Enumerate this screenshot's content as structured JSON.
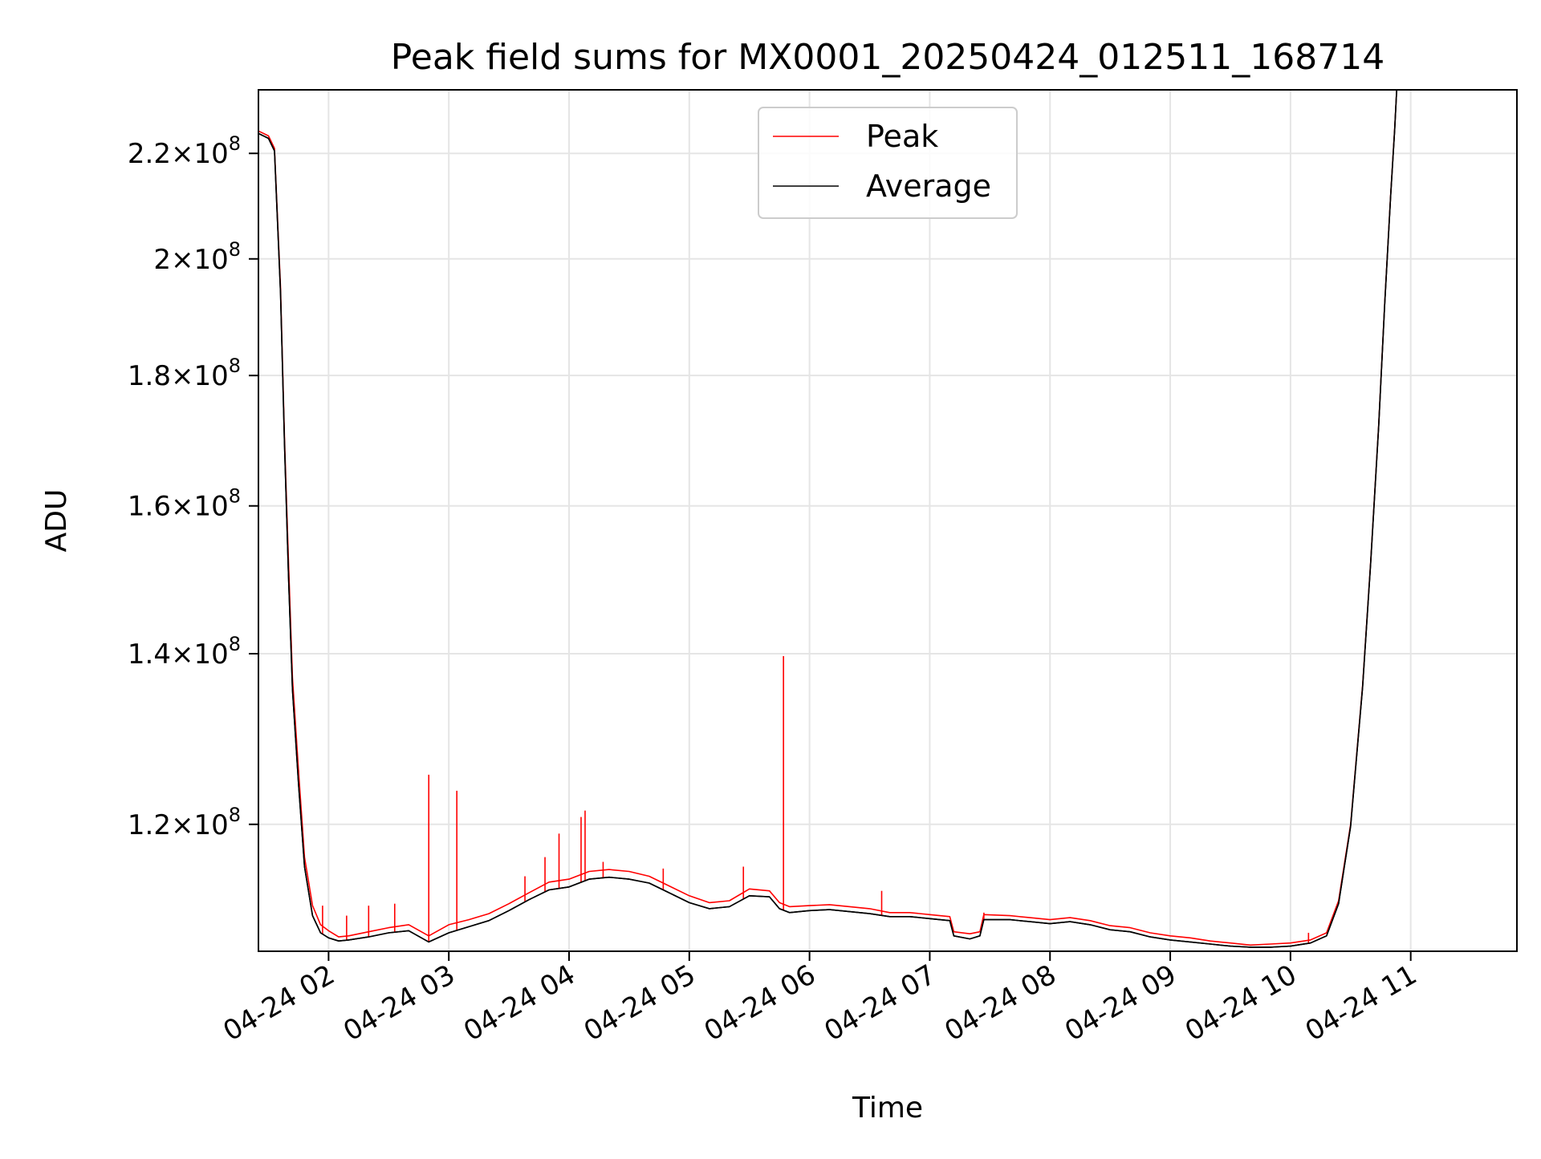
{
  "chart_data": {
    "type": "line",
    "title": "Peak field sums for MX0001_20250424_012511_168714",
    "xlabel": "Time",
    "ylabel": "ADU",
    "x_type": "datetime",
    "xlim": [
      "2025-04-24 01:25",
      "2025-04-24 11:53"
    ],
    "ylim": [
      107000000.0,
      233000000.0
    ],
    "y_scale": "log",
    "grid": true,
    "legend_position": "top-center",
    "x_ticks": [
      {
        "label": "04-24 02",
        "value": "2025-04-24 02:00"
      },
      {
        "label": "04-24 03",
        "value": "2025-04-24 03:00"
      },
      {
        "label": "04-24 04",
        "value": "2025-04-24 04:00"
      },
      {
        "label": "04-24 05",
        "value": "2025-04-24 05:00"
      },
      {
        "label": "04-24 06",
        "value": "2025-04-24 06:00"
      },
      {
        "label": "04-24 07",
        "value": "2025-04-24 07:00"
      },
      {
        "label": "04-24 08",
        "value": "2025-04-24 08:00"
      },
      {
        "label": "04-24 09",
        "value": "2025-04-24 09:00"
      },
      {
        "label": "04-24 10",
        "value": "2025-04-24 10:00"
      },
      {
        "label": "04-24 11",
        "value": "2025-04-24 11:00"
      }
    ],
    "y_ticks": [
      {
        "mantissa": "1.2",
        "exp": "8",
        "value": 120000000.0
      },
      {
        "mantissa": "1.4",
        "exp": "8",
        "value": 140000000.0
      },
      {
        "mantissa": "1.6",
        "exp": "8",
        "value": 160000000.0
      },
      {
        "mantissa": "1.8",
        "exp": "8",
        "value": 180000000.0
      },
      {
        "mantissa": "2",
        "exp": "8",
        "value": 200000000.0
      },
      {
        "mantissa": "2.2",
        "exp": "8",
        "value": 220000000.0
      }
    ],
    "series": [
      {
        "name": "Peak",
        "color": "#ff0000",
        "points": [
          [
            "2025-04-24 01:25",
            224500000.0
          ],
          [
            "2025-04-24 01:30",
            223500000.0
          ],
          [
            "2025-04-24 01:33",
            221000000.0
          ],
          [
            "2025-04-24 01:36",
            195000000.0
          ],
          [
            "2025-04-24 01:38",
            170000000.0
          ],
          [
            "2025-04-24 01:40",
            152000000.0
          ],
          [
            "2025-04-24 01:42",
            137000000.0
          ],
          [
            "2025-04-24 01:45",
            126000000.0
          ],
          [
            "2025-04-24 01:48",
            116500000.0
          ],
          [
            "2025-04-24 01:52",
            111500000.0
          ],
          [
            "2025-04-24 01:56",
            109600000.0
          ],
          [
            "2025-04-24 02:00",
            109000000.0
          ],
          [
            "2025-04-24 02:05",
            108400000.0
          ],
          [
            "2025-04-24 02:10",
            108500000.0
          ],
          [
            "2025-04-24 02:20",
            108900000.0
          ],
          [
            "2025-04-24 02:30",
            109300000.0
          ],
          [
            "2025-04-24 02:40",
            109600000.0
          ],
          [
            "2025-04-24 02:50",
            108500000.0
          ],
          [
            "2025-04-24 03:00",
            109600000.0
          ],
          [
            "2025-04-24 03:10",
            110100000.0
          ],
          [
            "2025-04-24 03:20",
            110700000.0
          ],
          [
            "2025-04-24 03:30",
            111700000.0
          ],
          [
            "2025-04-24 03:40",
            112800000.0
          ],
          [
            "2025-04-24 03:50",
            113900000.0
          ],
          [
            "2025-04-24 04:00",
            114200000.0
          ],
          [
            "2025-04-24 04:10",
            115000000.0
          ],
          [
            "2025-04-24 04:20",
            115200000.0
          ],
          [
            "2025-04-24 04:30",
            115000000.0
          ],
          [
            "2025-04-24 04:40",
            114500000.0
          ],
          [
            "2025-04-24 04:50",
            113500000.0
          ],
          [
            "2025-04-24 05:00",
            112500000.0
          ],
          [
            "2025-04-24 05:10",
            111800000.0
          ],
          [
            "2025-04-24 05:20",
            112000000.0
          ],
          [
            "2025-04-24 05:30",
            113200000.0
          ],
          [
            "2025-04-24 05:40",
            113000000.0
          ],
          [
            "2025-04-24 05:45",
            111800000.0
          ],
          [
            "2025-04-24 05:50",
            111400000.0
          ],
          [
            "2025-04-24 06:00",
            111500000.0
          ],
          [
            "2025-04-24 06:10",
            111600000.0
          ],
          [
            "2025-04-24 06:20",
            111400000.0
          ],
          [
            "2025-04-24 06:30",
            111200000.0
          ],
          [
            "2025-04-24 06:40",
            110800000.0
          ],
          [
            "2025-04-24 06:50",
            110800000.0
          ],
          [
            "2025-04-24 07:00",
            110600000.0
          ],
          [
            "2025-04-24 07:10",
            110400000.0
          ],
          [
            "2025-04-24 07:12",
            108900000.0
          ],
          [
            "2025-04-24 07:20",
            108700000.0
          ],
          [
            "2025-04-24 07:25",
            108900000.0
          ],
          [
            "2025-04-24 07:27",
            110600000.0
          ],
          [
            "2025-04-24 07:40",
            110500000.0
          ],
          [
            "2025-04-24 07:50",
            110300000.0
          ],
          [
            "2025-04-24 08:00",
            110100000.0
          ],
          [
            "2025-04-24 08:10",
            110300000.0
          ],
          [
            "2025-04-24 08:20",
            110000000.0
          ],
          [
            "2025-04-24 08:30",
            109500000.0
          ],
          [
            "2025-04-24 08:40",
            109300000.0
          ],
          [
            "2025-04-24 08:50",
            108800000.0
          ],
          [
            "2025-04-24 09:00",
            108500000.0
          ],
          [
            "2025-04-24 09:10",
            108300000.0
          ],
          [
            "2025-04-24 09:20",
            108000000.0
          ],
          [
            "2025-04-24 09:30",
            107800000.0
          ],
          [
            "2025-04-24 09:40",
            107600000.0
          ],
          [
            "2025-04-24 09:50",
            107700000.0
          ],
          [
            "2025-04-24 10:00",
            107800000.0
          ],
          [
            "2025-04-24 10:10",
            108100000.0
          ],
          [
            "2025-04-24 10:18",
            108800000.0
          ],
          [
            "2025-04-24 10:24",
            112000000.0
          ],
          [
            "2025-04-24 10:30",
            120000000.0
          ],
          [
            "2025-04-24 10:36",
            136000000.0
          ],
          [
            "2025-04-24 10:40",
            152000000.0
          ],
          [
            "2025-04-24 10:44",
            172000000.0
          ],
          [
            "2025-04-24 10:47",
            192000000.0
          ],
          [
            "2025-04-24 10:50",
            212000000.0
          ],
          [
            "2025-04-24 10:52",
            225000000.0
          ],
          [
            "2025-04-24 10:53",
            233000000.0
          ]
        ],
        "spikes": [
          [
            "2025-04-24 01:38",
            169000000.0
          ],
          [
            "2025-04-24 01:45",
            126000000.0
          ],
          [
            "2025-04-24 01:57",
            111500000.0
          ],
          [
            "2025-04-24 02:09",
            110500000.0
          ],
          [
            "2025-04-24 02:20",
            111500000.0
          ],
          [
            "2025-04-24 02:33",
            111700000.0
          ],
          [
            "2025-04-24 02:50",
            125500000.0
          ],
          [
            "2025-04-24 03:04",
            123700000.0
          ],
          [
            "2025-04-24 03:38",
            114500000.0
          ],
          [
            "2025-04-24 03:48",
            116500000.0
          ],
          [
            "2025-04-24 03:55",
            119000000.0
          ],
          [
            "2025-04-24 04:06",
            120800000.0
          ],
          [
            "2025-04-24 04:08",
            121500000.0
          ],
          [
            "2025-04-24 04:17",
            116000000.0
          ],
          [
            "2025-04-24 04:47",
            115300000.0
          ],
          [
            "2025-04-24 05:27",
            115500000.0
          ],
          [
            "2025-04-24 05:47",
            139700000.0
          ],
          [
            "2025-04-24 06:36",
            113000000.0
          ],
          [
            "2025-04-24 07:27",
            110800000.0
          ],
          [
            "2025-04-24 10:09",
            108800000.0
          ]
        ]
      },
      {
        "name": "Average",
        "color": "#000000",
        "points": [
          [
            "2025-04-24 01:25",
            224000000.0
          ],
          [
            "2025-04-24 01:30",
            223000000.0
          ],
          [
            "2025-04-24 01:33",
            220500000.0
          ],
          [
            "2025-04-24 01:36",
            194000000.0
          ],
          [
            "2025-04-24 01:38",
            169000000.0
          ],
          [
            "2025-04-24 01:40",
            150000000.0
          ],
          [
            "2025-04-24 01:42",
            135500000.0
          ],
          [
            "2025-04-24 01:45",
            124500000.0
          ],
          [
            "2025-04-24 01:48",
            115500000.0
          ],
          [
            "2025-04-24 01:52",
            110500000.0
          ],
          [
            "2025-04-24 01:56",
            108800000.0
          ],
          [
            "2025-04-24 02:00",
            108300000.0
          ],
          [
            "2025-04-24 02:05",
            108000000.0
          ],
          [
            "2025-04-24 02:10",
            108100000.0
          ],
          [
            "2025-04-24 02:20",
            108400000.0
          ],
          [
            "2025-04-24 02:30",
            108800000.0
          ],
          [
            "2025-04-24 02:40",
            109000000.0
          ],
          [
            "2025-04-24 02:50",
            107900000.0
          ],
          [
            "2025-04-24 03:00",
            108800000.0
          ],
          [
            "2025-04-24 03:10",
            109400000.0
          ],
          [
            "2025-04-24 03:20",
            110000000.0
          ],
          [
            "2025-04-24 03:30",
            111000000.0
          ],
          [
            "2025-04-24 03:40",
            112100000.0
          ],
          [
            "2025-04-24 03:50",
            113100000.0
          ],
          [
            "2025-04-24 04:00",
            113400000.0
          ],
          [
            "2025-04-24 04:10",
            114200000.0
          ],
          [
            "2025-04-24 04:20",
            114400000.0
          ],
          [
            "2025-04-24 04:30",
            114200000.0
          ],
          [
            "2025-04-24 04:40",
            113800000.0
          ],
          [
            "2025-04-24 04:50",
            112800000.0
          ],
          [
            "2025-04-24 05:00",
            111800000.0
          ],
          [
            "2025-04-24 05:10",
            111200000.0
          ],
          [
            "2025-04-24 05:20",
            111400000.0
          ],
          [
            "2025-04-24 05:30",
            112500000.0
          ],
          [
            "2025-04-24 05:40",
            112400000.0
          ],
          [
            "2025-04-24 05:45",
            111200000.0
          ],
          [
            "2025-04-24 05:50",
            110800000.0
          ],
          [
            "2025-04-24 06:00",
            111000000.0
          ],
          [
            "2025-04-24 06:10",
            111100000.0
          ],
          [
            "2025-04-24 06:20",
            110900000.0
          ],
          [
            "2025-04-24 06:30",
            110700000.0
          ],
          [
            "2025-04-24 06:40",
            110400000.0
          ],
          [
            "2025-04-24 06:50",
            110400000.0
          ],
          [
            "2025-04-24 07:00",
            110200000.0
          ],
          [
            "2025-04-24 07:10",
            110000000.0
          ],
          [
            "2025-04-24 07:12",
            108500000.0
          ],
          [
            "2025-04-24 07:20",
            108200000.0
          ],
          [
            "2025-04-24 07:25",
            108500000.0
          ],
          [
            "2025-04-24 07:27",
            110100000.0
          ],
          [
            "2025-04-24 07:40",
            110100000.0
          ],
          [
            "2025-04-24 07:50",
            109900000.0
          ],
          [
            "2025-04-24 08:00",
            109700000.0
          ],
          [
            "2025-04-24 08:10",
            109900000.0
          ],
          [
            "2025-04-24 08:20",
            109600000.0
          ],
          [
            "2025-04-24 08:30",
            109100000.0
          ],
          [
            "2025-04-24 08:40",
            108900000.0
          ],
          [
            "2025-04-24 08:50",
            108400000.0
          ],
          [
            "2025-04-24 09:00",
            108100000.0
          ],
          [
            "2025-04-24 09:10",
            107900000.0
          ],
          [
            "2025-04-24 09:20",
            107700000.0
          ],
          [
            "2025-04-24 09:30",
            107500000.0
          ],
          [
            "2025-04-24 09:40",
            107400000.0
          ],
          [
            "2025-04-24 09:50",
            107400000.0
          ],
          [
            "2025-04-24 10:00",
            107500000.0
          ],
          [
            "2025-04-24 10:10",
            107800000.0
          ],
          [
            "2025-04-24 10:18",
            108500000.0
          ],
          [
            "2025-04-24 10:24",
            111700000.0
          ],
          [
            "2025-04-24 10:30",
            119800000.0
          ],
          [
            "2025-04-24 10:36",
            135800000.0
          ],
          [
            "2025-04-24 10:40",
            151800000.0
          ],
          [
            "2025-04-24 10:44",
            171800000.0
          ],
          [
            "2025-04-24 10:47",
            191800000.0
          ],
          [
            "2025-04-24 10:50",
            211800000.0
          ],
          [
            "2025-04-24 10:52",
            224800000.0
          ],
          [
            "2025-04-24 10:53",
            233000000.0
          ]
        ]
      }
    ]
  }
}
